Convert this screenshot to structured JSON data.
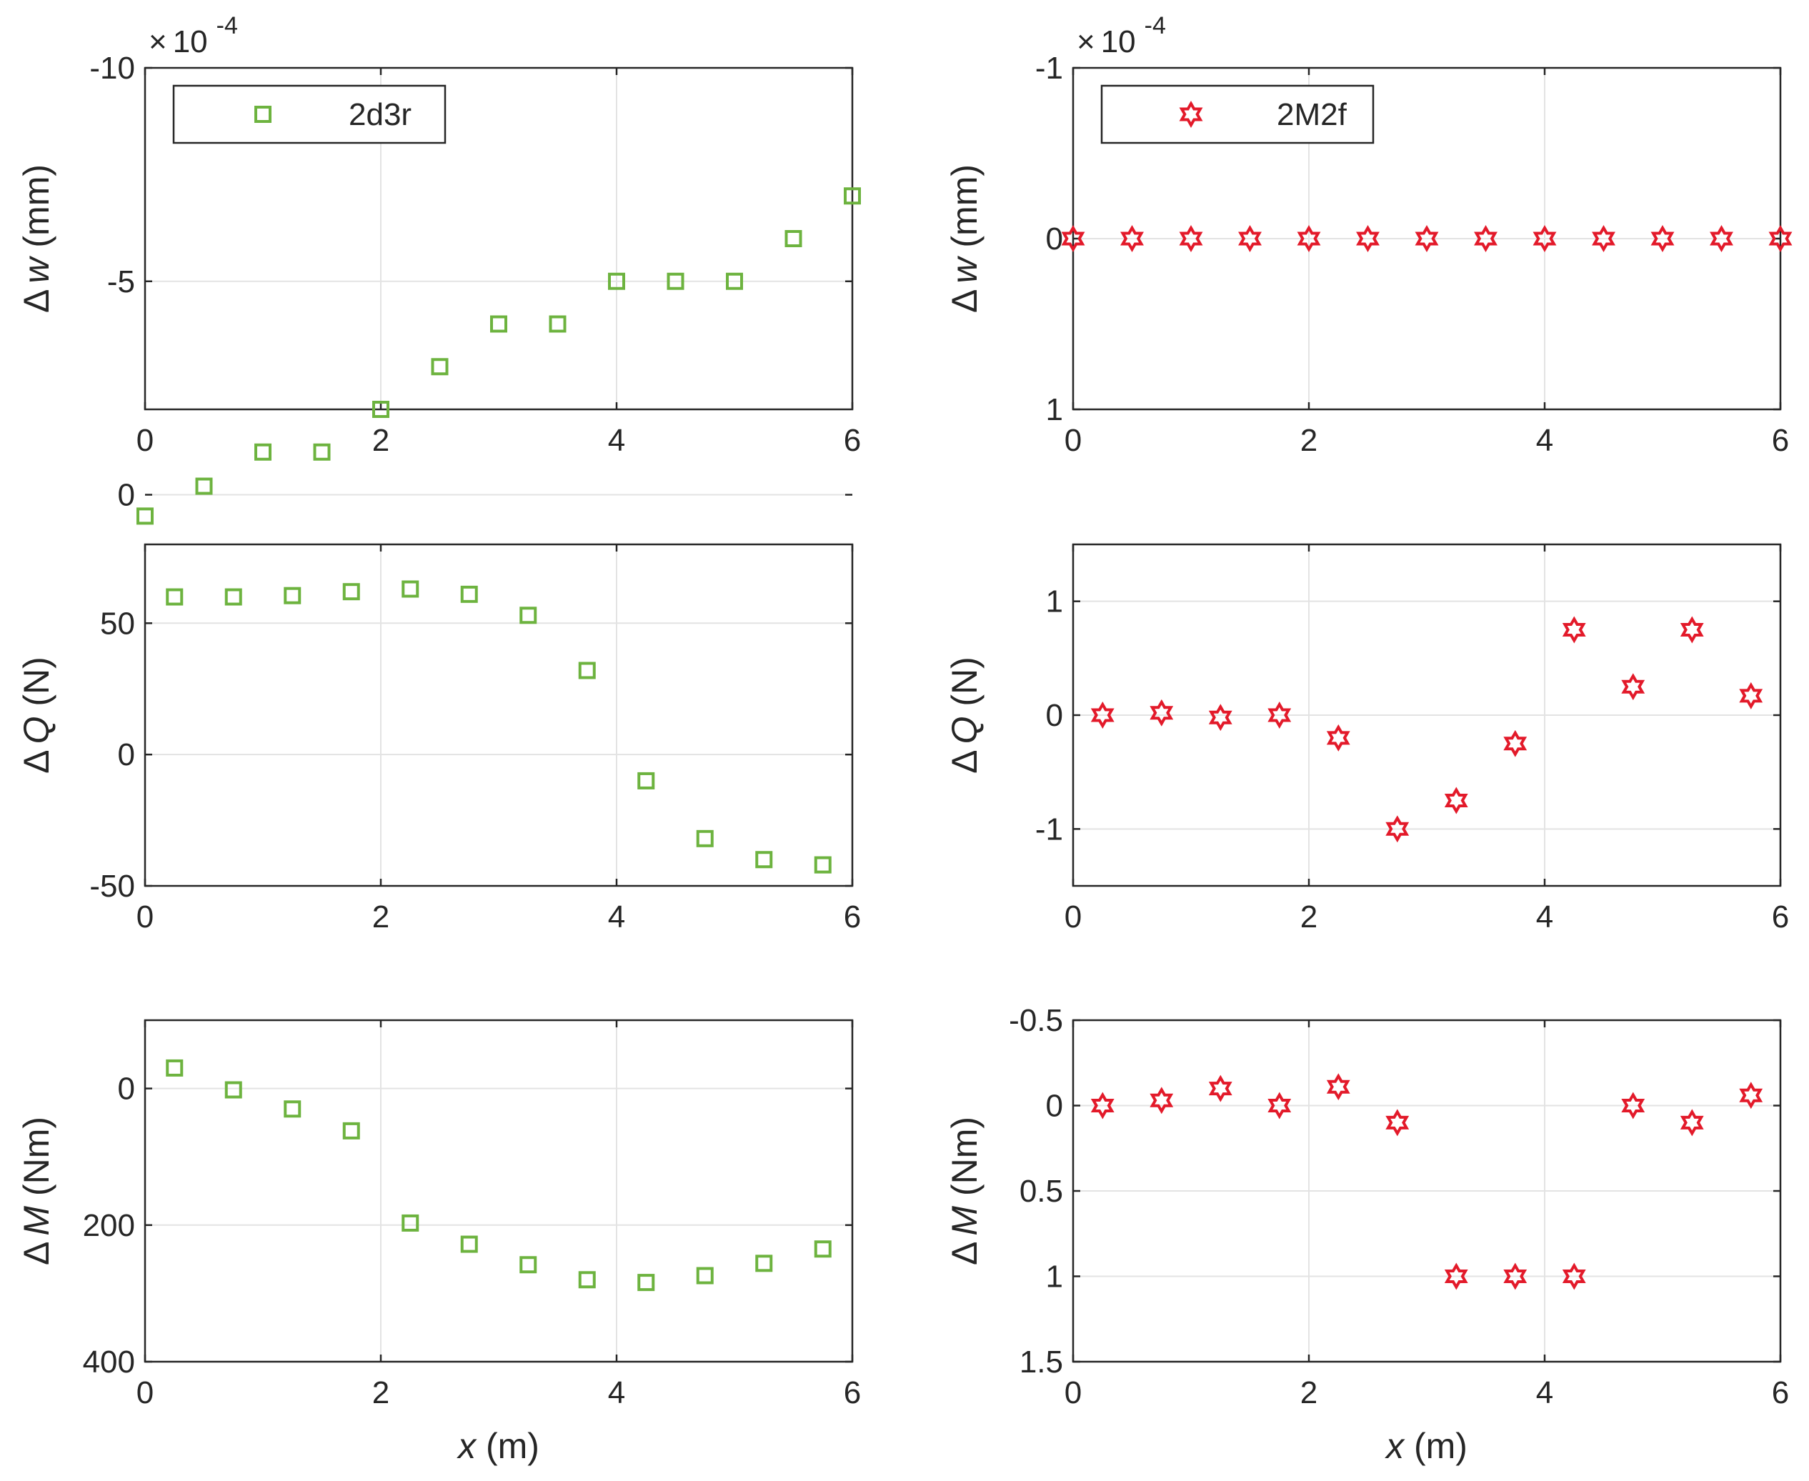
{
  "colors": {
    "green": "#6DB33F",
    "red": "#E31A2A",
    "axis": "#262626",
    "grid": "#E3E3E3"
  },
  "chart_data": [
    {
      "id": "w-green",
      "type": "scatter",
      "marker": "square",
      "color": "#6DB33F",
      "legend": "2d3r",
      "ylabel_sym": "Δ",
      "ylabel_var": "w",
      "ylabel_unit": " (mm)",
      "y_reversed": true,
      "ylim": [
        -2,
        -10
      ],
      "xlim": [
        0,
        6
      ],
      "multiplier_x": "×",
      "multiplier_base": "10",
      "multiplier_exp": "-4",
      "xticks": [
        "0",
        "2",
        "4",
        "6"
      ],
      "yticks": [
        "-10",
        "-5",
        "0"
      ],
      "ytick_values": [
        -10,
        -5,
        0
      ],
      "x": [
        0,
        0.5,
        1,
        1.5,
        2,
        2.5,
        3,
        3.5,
        4,
        4.5,
        5,
        5.5,
        6
      ],
      "y": [
        0.5,
        -0.2,
        -1,
        -1,
        -2,
        -3,
        -4,
        -4,
        -5,
        -5,
        -5,
        -6,
        -7
      ]
    },
    {
      "id": "w-red",
      "type": "scatter",
      "marker": "hexagram",
      "color": "#E31A2A",
      "legend": "2M2f",
      "ylabel_sym": "Δ",
      "ylabel_var": "w",
      "ylabel_unit": " (mm)",
      "y_reversed": true,
      "ylim": [
        1,
        -1
      ],
      "xlim": [
        0,
        6
      ],
      "multiplier_x": "×",
      "multiplier_base": "10",
      "multiplier_exp": "-4",
      "xticks": [
        "0",
        "2",
        "4",
        "6"
      ],
      "yticks": [
        "-1",
        "0",
        "1"
      ],
      "ytick_values": [
        -1,
        0,
        1
      ],
      "x": [
        0,
        0.5,
        1,
        1.5,
        2,
        2.5,
        3,
        3.5,
        4,
        4.5,
        5,
        5.5,
        6
      ],
      "y": [
        0,
        0,
        0,
        0,
        0,
        0,
        0,
        0,
        0,
        0,
        0,
        0,
        0
      ]
    },
    {
      "id": "q-green",
      "type": "scatter",
      "marker": "square",
      "color": "#6DB33F",
      "ylabel_sym": "Δ",
      "ylabel_var": "Q",
      "ylabel_unit": " (N)",
      "y_reversed": false,
      "ylim": [
        -50,
        80
      ],
      "xlim": [
        0,
        6
      ],
      "xticks": [
        "0",
        "2",
        "4",
        "6"
      ],
      "yticks": [
        "-50",
        "0",
        "50"
      ],
      "ytick_values": [
        -50,
        0,
        50
      ],
      "x": [
        0.25,
        0.75,
        1.25,
        1.75,
        2.25,
        2.75,
        3.25,
        3.75,
        4.25,
        4.75,
        5.25,
        5.75
      ],
      "y": [
        60,
        60,
        60.5,
        62,
        63,
        61,
        53,
        32,
        -10,
        -32,
        -40,
        -42
      ]
    },
    {
      "id": "q-red",
      "type": "scatter",
      "marker": "hexagram",
      "color": "#E31A2A",
      "ylabel_sym": "Δ",
      "ylabel_var": "Q",
      "ylabel_unit": " (N)",
      "y_reversed": false,
      "ylim": [
        -1.5,
        1.5
      ],
      "xlim": [
        0,
        6
      ],
      "xticks": [
        "0",
        "2",
        "4",
        "6"
      ],
      "yticks": [
        "-1",
        "0",
        "1"
      ],
      "ytick_values": [
        -1,
        0,
        1
      ],
      "x": [
        0.25,
        0.75,
        1.25,
        1.75,
        2.25,
        2.75,
        3.25,
        3.75,
        4.25,
        4.75,
        5.25,
        5.75
      ],
      "y": [
        0,
        0.02,
        -0.02,
        0,
        -0.2,
        -1,
        -0.75,
        -0.25,
        0.75,
        0.25,
        0.75,
        0.17
      ]
    },
    {
      "id": "m-green",
      "type": "scatter",
      "marker": "square",
      "color": "#6DB33F",
      "ylabel_sym": "Δ",
      "ylabel_var": "M",
      "ylabel_unit": " (Nm)",
      "y_reversed": true,
      "ylim": [
        400,
        -100
      ],
      "xlim": [
        0,
        6
      ],
      "xticks": [
        "0",
        "2",
        "4",
        "6"
      ],
      "yticks": [
        "0",
        "200",
        "400"
      ],
      "ytick_values": [
        0,
        200,
        400
      ],
      "xlabel_var": "x",
      "xlabel_unit": " (m)",
      "x": [
        0.25,
        0.75,
        1.25,
        1.75,
        2.25,
        2.75,
        3.25,
        3.75,
        4.25,
        4.75,
        5.25,
        5.75
      ],
      "y": [
        -30,
        2,
        30,
        62,
        197,
        228,
        258,
        280,
        284,
        274,
        256,
        235
      ]
    },
    {
      "id": "m-red",
      "type": "scatter",
      "marker": "hexagram",
      "color": "#E31A2A",
      "ylabel_sym": "Δ",
      "ylabel_var": "M",
      "ylabel_unit": " (Nm)",
      "y_reversed": true,
      "ylim": [
        1.5,
        -0.5
      ],
      "xlim": [
        0,
        6
      ],
      "xticks": [
        "0",
        "2",
        "4",
        "6"
      ],
      "yticks": [
        "-0.5",
        "0",
        "0.5",
        "1",
        "1.5"
      ],
      "ytick_values": [
        -0.5,
        0,
        0.5,
        1,
        1.5
      ],
      "xlabel_var": "x",
      "xlabel_unit": " (m)",
      "x": [
        0.25,
        0.75,
        1.25,
        1.75,
        2.25,
        2.75,
        3.25,
        3.75,
        4.25,
        4.75,
        5.25,
        5.75
      ],
      "y": [
        0,
        -0.03,
        -0.1,
        0,
        -0.11,
        0.1,
        1,
        1,
        1,
        0,
        0.1,
        -0.06
      ]
    }
  ]
}
